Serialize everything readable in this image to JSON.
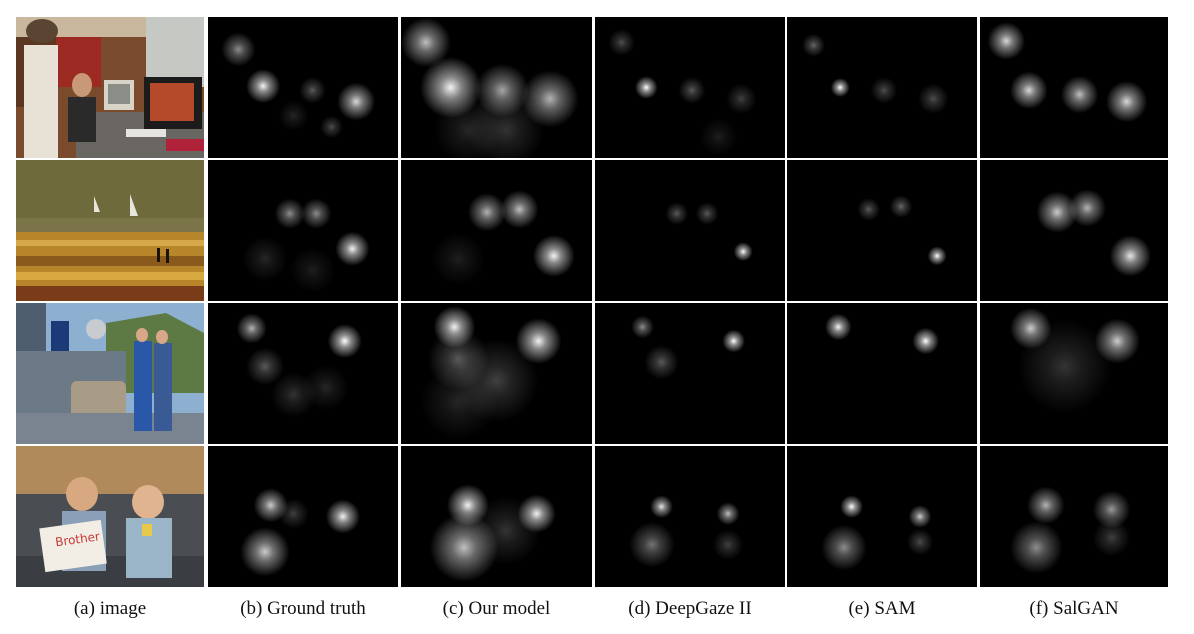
{
  "figure": {
    "captions": [
      "(a) image",
      "(b) Ground truth",
      "(c) Our model",
      "(d) DeepGaze II",
      "(e) SAM",
      "(f) SalGAN"
    ],
    "rows": [
      {
        "scene": "office-computers",
        "maps": [
          [
            [
              0.16,
              0.23,
              0.09,
              0.55
            ],
            [
              0.29,
              0.49,
              0.09,
              0.95
            ],
            [
              0.78,
              0.6,
              0.1,
              0.85
            ],
            [
              0.55,
              0.52,
              0.07,
              0.35
            ],
            [
              0.65,
              0.78,
              0.06,
              0.3
            ],
            [
              0.45,
              0.7,
              0.08,
              0.15
            ]
          ],
          [
            [
              0.13,
              0.18,
              0.13,
              0.75
            ],
            [
              0.26,
              0.5,
              0.16,
              0.95
            ],
            [
              0.53,
              0.52,
              0.14,
              0.65
            ],
            [
              0.78,
              0.58,
              0.15,
              0.7
            ],
            [
              0.55,
              0.8,
              0.2,
              0.2
            ],
            [
              0.35,
              0.8,
              0.18,
              0.15
            ]
          ],
          [
            [
              0.14,
              0.18,
              0.07,
              0.3
            ],
            [
              0.27,
              0.5,
              0.06,
              1.0
            ],
            [
              0.51,
              0.52,
              0.07,
              0.35
            ],
            [
              0.77,
              0.58,
              0.08,
              0.25
            ],
            [
              0.65,
              0.85,
              0.1,
              0.12
            ]
          ],
          [
            [
              0.14,
              0.2,
              0.06,
              0.4
            ],
            [
              0.28,
              0.5,
              0.05,
              1.0
            ],
            [
              0.51,
              0.52,
              0.07,
              0.3
            ],
            [
              0.77,
              0.58,
              0.08,
              0.3
            ]
          ],
          [
            [
              0.14,
              0.17,
              0.1,
              0.85
            ],
            [
              0.26,
              0.52,
              0.1,
              0.85
            ],
            [
              0.53,
              0.55,
              0.1,
              0.75
            ],
            [
              0.78,
              0.6,
              0.11,
              0.85
            ]
          ]
        ]
      },
      {
        "scene": "beach-sailboats",
        "maps": [
          [
            [
              0.43,
              0.38,
              0.08,
              0.55
            ],
            [
              0.57,
              0.38,
              0.08,
              0.55
            ],
            [
              0.76,
              0.63,
              0.09,
              0.95
            ],
            [
              0.3,
              0.7,
              0.12,
              0.15
            ],
            [
              0.55,
              0.78,
              0.12,
              0.12
            ]
          ],
          [
            [
              0.45,
              0.37,
              0.1,
              0.7
            ],
            [
              0.62,
              0.35,
              0.1,
              0.75
            ],
            [
              0.8,
              0.68,
              0.11,
              0.95
            ],
            [
              0.3,
              0.7,
              0.14,
              0.12
            ]
          ],
          [
            [
              0.43,
              0.38,
              0.06,
              0.35
            ],
            [
              0.59,
              0.38,
              0.06,
              0.35
            ],
            [
              0.78,
              0.65,
              0.05,
              1.0
            ]
          ],
          [
            [
              0.43,
              0.35,
              0.06,
              0.35
            ],
            [
              0.6,
              0.33,
              0.06,
              0.4
            ],
            [
              0.79,
              0.68,
              0.05,
              1.0
            ]
          ],
          [
            [
              0.41,
              0.37,
              0.11,
              0.8
            ],
            [
              0.57,
              0.34,
              0.1,
              0.7
            ],
            [
              0.8,
              0.68,
              0.11,
              0.9
            ]
          ]
        ]
      },
      {
        "scene": "ship-deck-people",
        "maps": [
          [
            [
              0.23,
              0.18,
              0.08,
              0.7
            ],
            [
              0.72,
              0.27,
              0.09,
              1.0
            ],
            [
              0.3,
              0.45,
              0.1,
              0.35
            ],
            [
              0.45,
              0.65,
              0.12,
              0.2
            ],
            [
              0.62,
              0.6,
              0.12,
              0.15
            ]
          ],
          [
            [
              0.28,
              0.17,
              0.11,
              0.95
            ],
            [
              0.72,
              0.27,
              0.12,
              0.95
            ],
            [
              0.3,
              0.4,
              0.16,
              0.35
            ],
            [
              0.5,
              0.55,
              0.22,
              0.25
            ],
            [
              0.3,
              0.7,
              0.2,
              0.15
            ]
          ],
          [
            [
              0.25,
              0.17,
              0.06,
              0.55
            ],
            [
              0.73,
              0.27,
              0.06,
              1.0
            ],
            [
              0.35,
              0.42,
              0.09,
              0.35
            ]
          ],
          [
            [
              0.27,
              0.17,
              0.07,
              0.95
            ],
            [
              0.73,
              0.27,
              0.07,
              1.0
            ]
          ],
          [
            [
              0.27,
              0.18,
              0.11,
              0.8
            ],
            [
              0.73,
              0.27,
              0.12,
              0.8
            ],
            [
              0.45,
              0.45,
              0.25,
              0.2
            ]
          ]
        ]
      },
      {
        "scene": "two-boys-sign",
        "maps": [
          [
            [
              0.33,
              0.42,
              0.09,
              0.8
            ],
            [
              0.71,
              0.5,
              0.09,
              0.95
            ],
            [
              0.3,
              0.75,
              0.13,
              0.8
            ],
            [
              0.45,
              0.48,
              0.08,
              0.25
            ]
          ],
          [
            [
              0.35,
              0.42,
              0.11,
              0.95
            ],
            [
              0.71,
              0.48,
              0.1,
              0.95
            ],
            [
              0.33,
              0.72,
              0.18,
              0.75
            ],
            [
              0.55,
              0.6,
              0.18,
              0.2
            ]
          ],
          [
            [
              0.35,
              0.43,
              0.06,
              0.9
            ],
            [
              0.7,
              0.48,
              0.06,
              0.75
            ],
            [
              0.3,
              0.7,
              0.12,
              0.45
            ],
            [
              0.7,
              0.7,
              0.08,
              0.25
            ]
          ],
          [
            [
              0.34,
              0.43,
              0.06,
              1.0
            ],
            [
              0.7,
              0.5,
              0.06,
              0.8
            ],
            [
              0.3,
              0.72,
              0.12,
              0.55
            ],
            [
              0.7,
              0.68,
              0.07,
              0.3
            ]
          ],
          [
            [
              0.35,
              0.42,
              0.1,
              0.7
            ],
            [
              0.7,
              0.45,
              0.1,
              0.6
            ],
            [
              0.3,
              0.72,
              0.14,
              0.55
            ],
            [
              0.7,
              0.65,
              0.1,
              0.25
            ]
          ]
        ]
      }
    ]
  }
}
